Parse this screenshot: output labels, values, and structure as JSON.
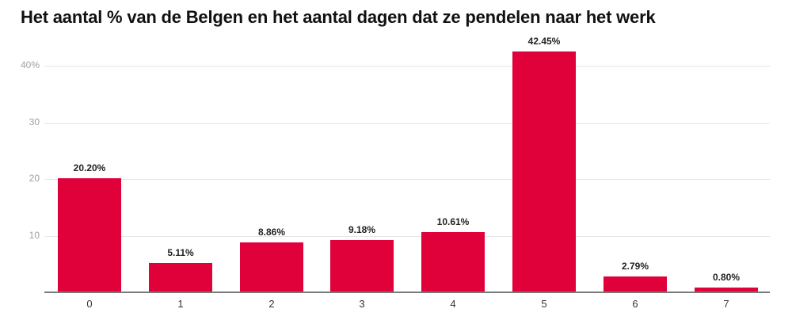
{
  "title": "Het aantal % van de Belgen en het aantal dagen dat ze pendelen naar het werk",
  "chart_data": {
    "type": "bar",
    "title": "Het aantal % van de Belgen en het aantal dagen dat ze pendelen naar het werk",
    "xlabel": "",
    "ylabel": "",
    "categories": [
      "0",
      "1",
      "2",
      "3",
      "4",
      "5",
      "6",
      "7"
    ],
    "values": [
      20.2,
      5.11,
      8.86,
      9.18,
      10.61,
      42.45,
      2.79,
      0.8
    ],
    "value_labels": [
      "20.20%",
      "5.11%",
      "8.86%",
      "9.18%",
      "10.61%",
      "42.45%",
      "2.79%",
      "0.80%"
    ],
    "yticks": [
      {
        "value": 10,
        "label": "10"
      },
      {
        "value": 20,
        "label": "20"
      },
      {
        "value": 30,
        "label": "30"
      },
      {
        "value": 40,
        "label": "40%"
      }
    ],
    "ylim": [
      0,
      45
    ],
    "grid": true,
    "legend": "none",
    "bar_color": "#e0003a"
  }
}
